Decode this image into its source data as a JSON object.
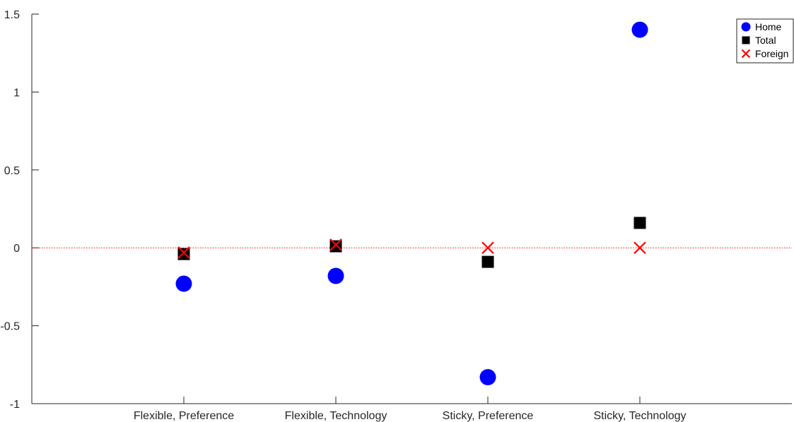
{
  "chart_data": {
    "type": "scatter",
    "categories": [
      "Flexible, Preference",
      "Flexible, Technology",
      "Sticky, Preference",
      "Sticky, Technology"
    ],
    "series": [
      {
        "name": "Home",
        "marker": "circle",
        "color": "#0000FF",
        "values": [
          -0.23,
          -0.18,
          -0.83,
          1.4
        ]
      },
      {
        "name": "Total",
        "marker": "square",
        "color": "#000000",
        "values": [
          -0.04,
          0.01,
          -0.09,
          0.16
        ]
      },
      {
        "name": "Foreign",
        "marker": "x",
        "color": "#FF0000",
        "values": [
          -0.03,
          0.02,
          0.0,
          0.0
        ]
      }
    ],
    "ylim": [
      -1,
      1.5
    ],
    "xlim": [
      0,
      5
    ],
    "yticks": [
      -1,
      -0.5,
      0,
      0.5,
      1,
      1.5
    ],
    "ytick_labels": [
      "-1",
      "-0.5",
      "0",
      "0.5",
      "1",
      "1.5"
    ],
    "reference_line": {
      "y": 0,
      "style": "dotted",
      "color": "#FF0000"
    },
    "grid": false,
    "legend": "top-right",
    "title": "",
    "xlabel": "",
    "ylabel": ""
  }
}
